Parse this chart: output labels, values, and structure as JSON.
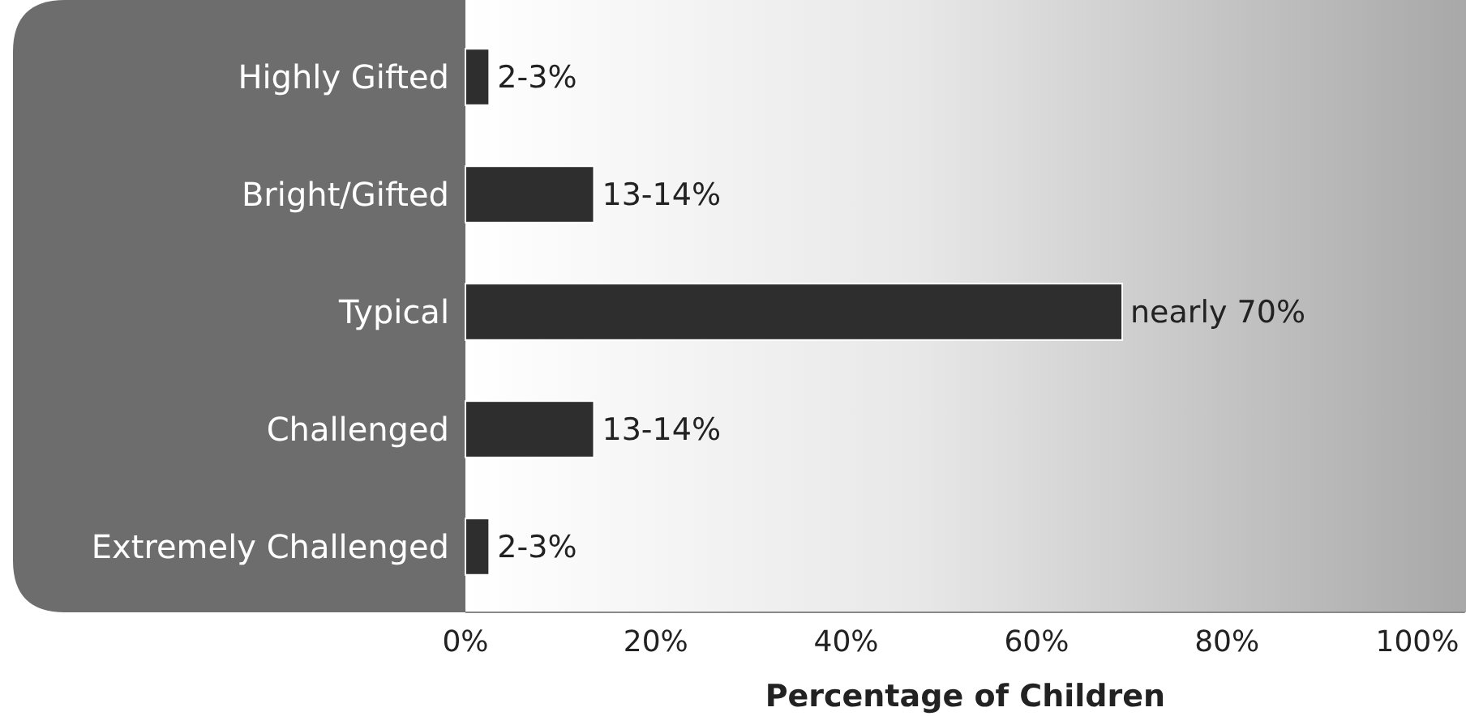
{
  "chart_data": {
    "type": "bar",
    "orientation": "horizontal",
    "xlabel": "Percentage of Children",
    "categories": [
      "Highly Gifted",
      "Bright/Gifted",
      "Typical",
      "Challenged",
      "Extremely Challenged"
    ],
    "values": [
      2.5,
      13.5,
      69,
      13.5,
      2.5
    ],
    "value_labels": [
      "2-3%",
      "13-14%",
      "nearly 70%",
      "13-14%",
      "2-3%"
    ],
    "color": "#2e2e2e",
    "xlim": [
      0,
      105
    ],
    "xticks": [
      {
        "value": 0,
        "label": "0%"
      },
      {
        "value": 20,
        "label": "20%"
      },
      {
        "value": 40,
        "label": "40%"
      },
      {
        "value": 60,
        "label": "60%"
      },
      {
        "value": 80,
        "label": "80%"
      },
      {
        "value": 100,
        "label": "100%"
      }
    ],
    "grid": false
  }
}
